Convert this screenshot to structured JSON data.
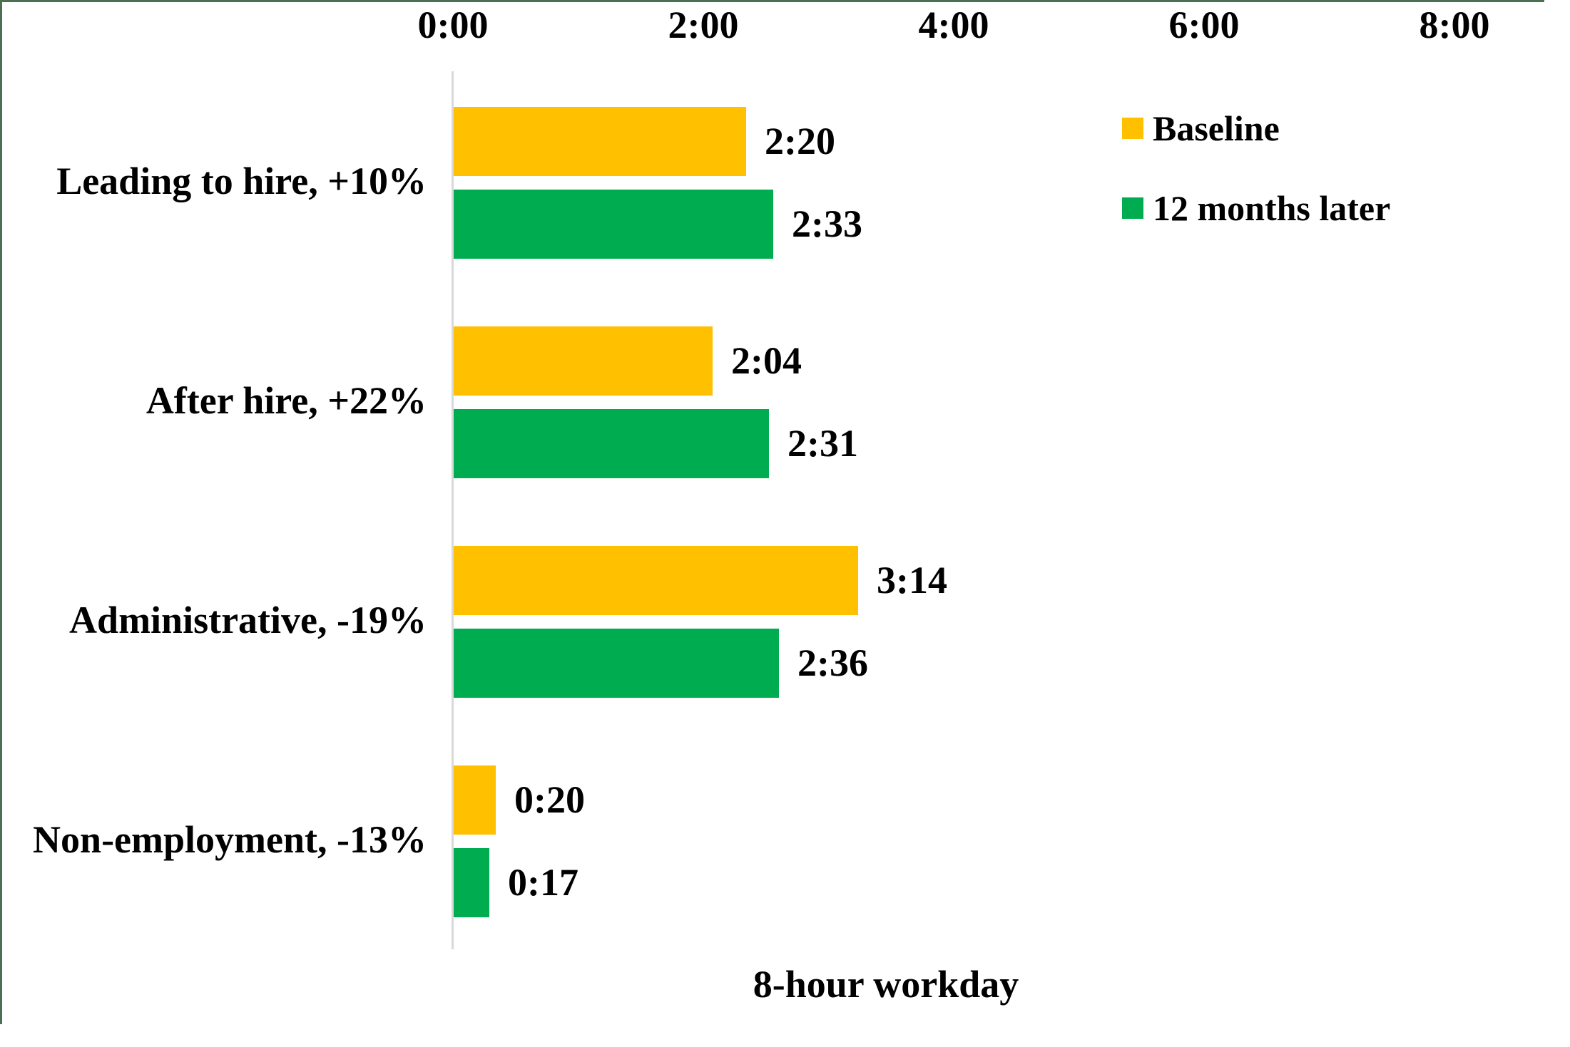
{
  "chart_data": {
    "type": "bar",
    "orientation": "horizontal",
    "title": "",
    "categories": [
      "Leading to hire, +10%",
      "After hire, +22%",
      "Administrative, -19%",
      "Non-employment, -13%"
    ],
    "series": [
      {
        "name": "Baseline",
        "color": "#FFC000",
        "points": [
          {
            "label": "2:20",
            "minutes": 140,
            "hours": 2.333
          },
          {
            "label": "2:04",
            "minutes": 124,
            "hours": 2.067
          },
          {
            "label": "3:14",
            "minutes": 194,
            "hours": 3.233
          },
          {
            "label": "0:20",
            "minutes": 20,
            "hours": 0.333
          }
        ]
      },
      {
        "name": "12 months later",
        "color": "#00AC50",
        "points": [
          {
            "label": "2:33",
            "minutes": 153,
            "hours": 2.55
          },
          {
            "label": "2:31",
            "minutes": 151,
            "hours": 2.517
          },
          {
            "label": "2:36",
            "minutes": 156,
            "hours": 2.6
          },
          {
            "label": "0:17",
            "minutes": 17,
            "hours": 0.283
          }
        ]
      }
    ],
    "x_axis": {
      "position": "top",
      "ticks": [
        "0:00",
        "2:00",
        "4:00",
        "6:00",
        "8:00"
      ],
      "min_hours": 0,
      "max_hours": 8,
      "title": "8-hour workday"
    },
    "legend": {
      "position": "top-right"
    },
    "grid": false
  },
  "colors": {
    "frame_border": "#4A7153",
    "axis_line": "#D9D9D9",
    "text": "#000000",
    "background": "#FFFFFF"
  }
}
